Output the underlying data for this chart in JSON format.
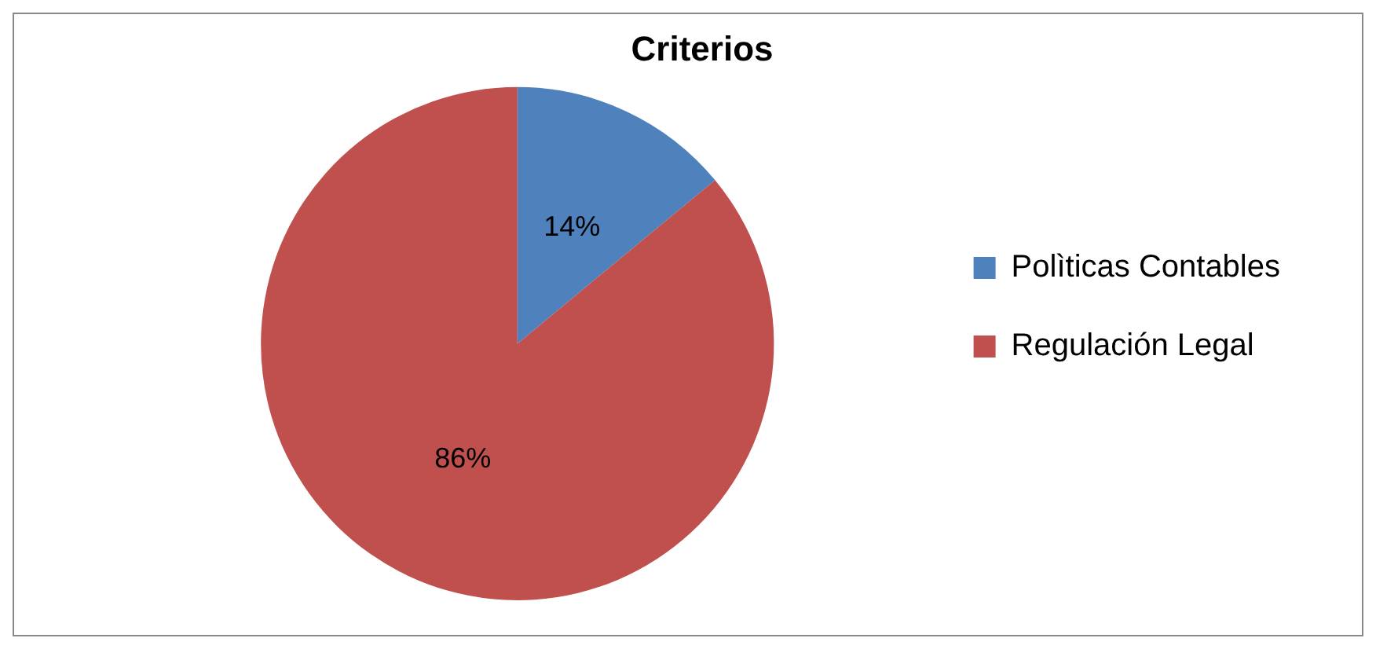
{
  "chart_data": {
    "type": "pie",
    "title": "Criterios",
    "categories": [
      "Polìticas Contables",
      "Regulación Legal"
    ],
    "values": [
      14,
      86
    ],
    "colors": [
      "#4f81bd",
      "#c0504d"
    ],
    "value_labels": [
      "14%",
      "86%"
    ],
    "legend": "right"
  }
}
